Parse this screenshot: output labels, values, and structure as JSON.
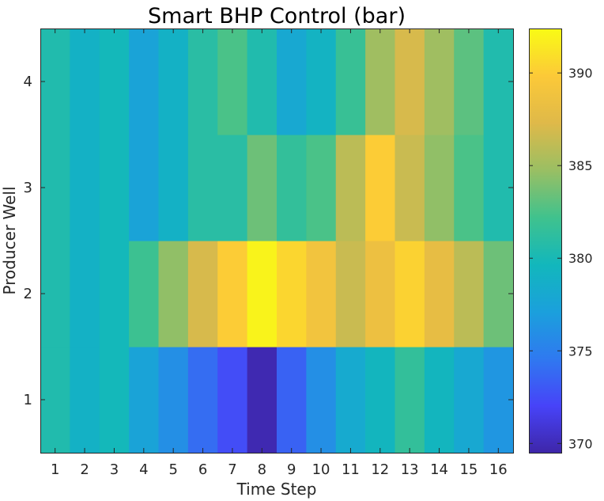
{
  "chart_data": {
    "type": "heatmap",
    "title": "Smart BHP Control (bar)",
    "xlabel": "Time Step",
    "ylabel": "Producer Well",
    "x": [
      1,
      2,
      3,
      4,
      5,
      6,
      7,
      8,
      9,
      10,
      11,
      12,
      13,
      14,
      15,
      16
    ],
    "y": [
      1,
      2,
      3,
      4
    ],
    "values": [
      [
        380.5,
        379.0,
        379.8,
        377.5,
        376.0,
        374.0,
        372.5,
        369.8,
        373.5,
        376.0,
        378.2,
        379.5,
        381.5,
        379.5,
        378.0,
        376.5
      ],
      [
        380.5,
        379.0,
        379.8,
        382.0,
        384.5,
        387.0,
        390.0,
        392.0,
        390.5,
        389.0,
        386.5,
        388.5,
        390.3,
        388.0,
        386.0,
        383.5
      ],
      [
        380.5,
        379.0,
        379.8,
        377.5,
        379.0,
        381.0,
        381.0,
        383.5,
        381.5,
        382.5,
        386.0,
        390.0,
        386.5,
        384.5,
        382.5,
        380.5
      ],
      [
        380.5,
        379.0,
        379.8,
        377.5,
        379.0,
        381.0,
        382.5,
        380.5,
        378.0,
        379.2,
        381.8,
        385.0,
        387.0,
        385.0,
        383.0,
        380.5
      ]
    ],
    "colorbar": {
      "min": 369.5,
      "max": 392.4,
      "ticks": [
        370,
        375,
        380,
        385,
        390
      ]
    },
    "colormap": [
      "#3e26a8",
      "#4743f8",
      "#2f79f0",
      "#1ba0dc",
      "#12b7bc",
      "#40c28d",
      "#9abf63",
      "#dfb949",
      "#fcc938",
      "#f9fb15"
    ],
    "grid": false
  }
}
